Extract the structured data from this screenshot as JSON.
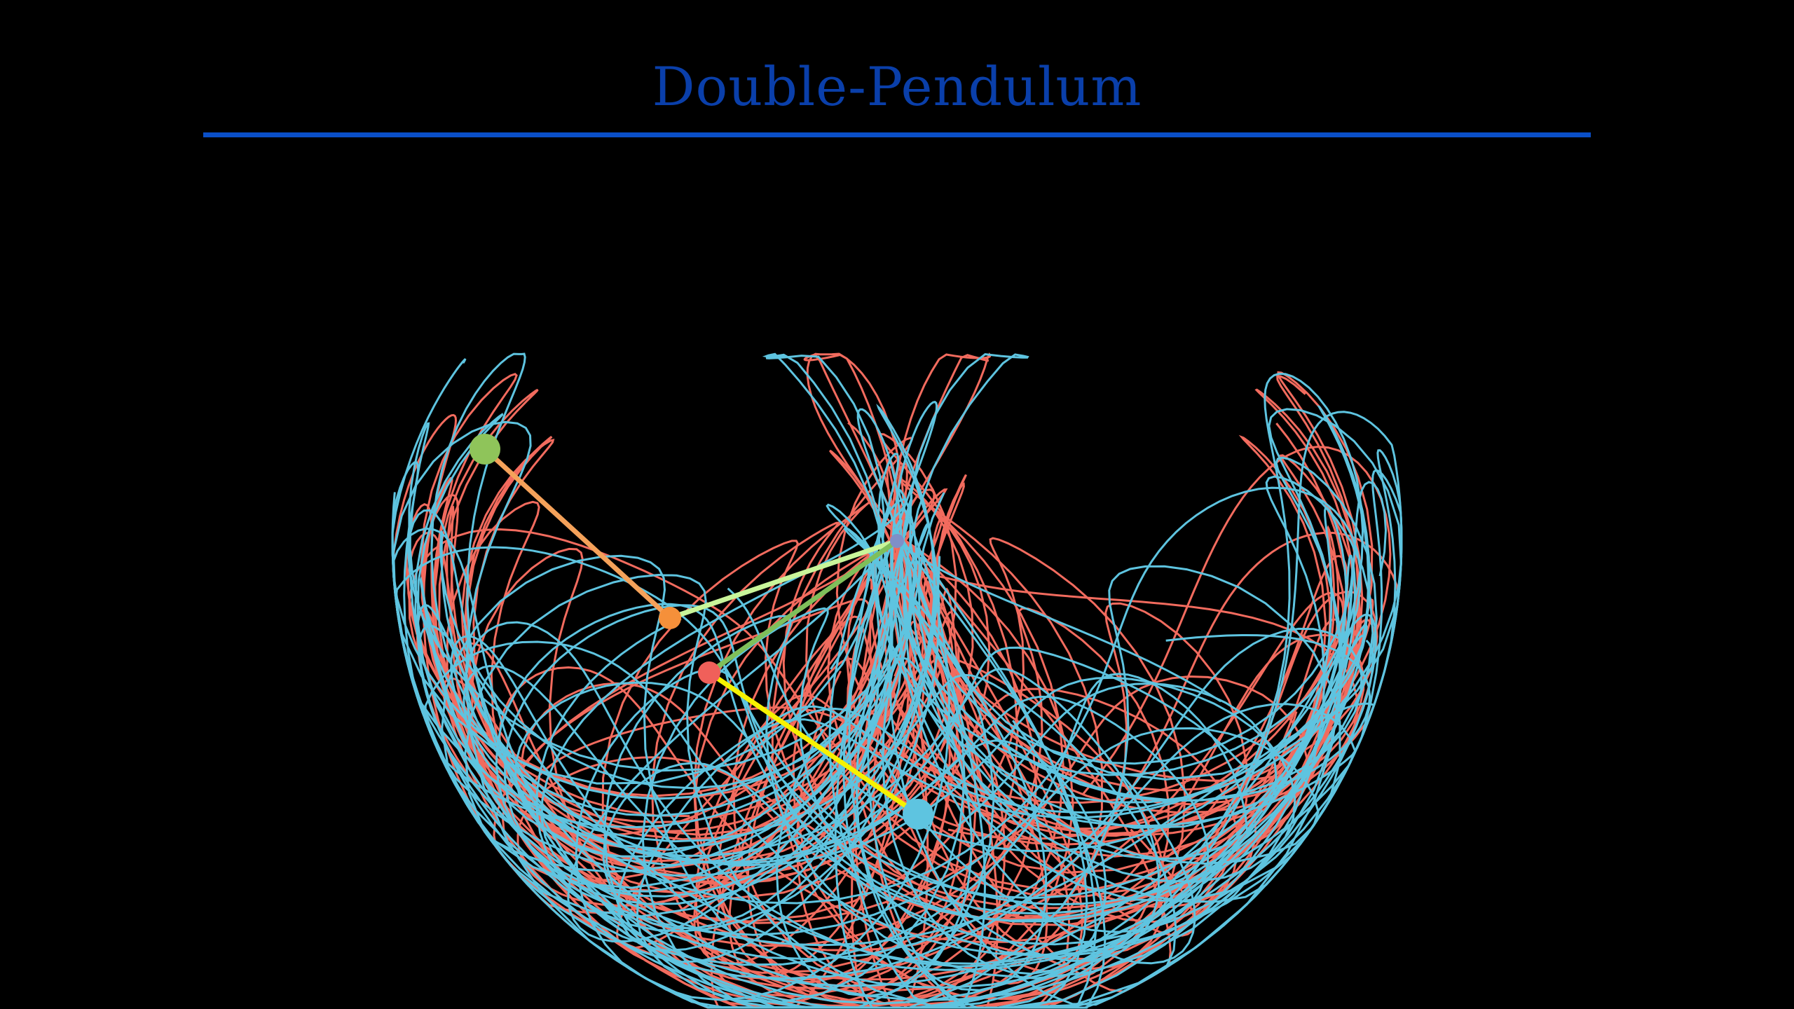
{
  "title": "Double-Pendulum",
  "colors": {
    "background": "#000000",
    "title": "#0a3faa",
    "title_rule": "#0a4fc8",
    "trace_a": "#f26b5e",
    "trace_b": "#5ec4e0",
    "pendulum_a_arm1": "#c9f59a",
    "pendulum_a_arm2": "#f5a25a",
    "pendulum_a_mid_bob": "#f5903a",
    "pendulum_a_end_bob": "#8fc45a",
    "pendulum_b_arm1": "#7fbf5a",
    "pendulum_b_arm2": "#f7f200",
    "pendulum_b_mid_bob": "#f0605a",
    "pendulum_b_end_bob": "#5ec4e0",
    "pivot": "#7f8fc8"
  },
  "icons": {
    "pivot": "pivot-point-icon"
  }
}
